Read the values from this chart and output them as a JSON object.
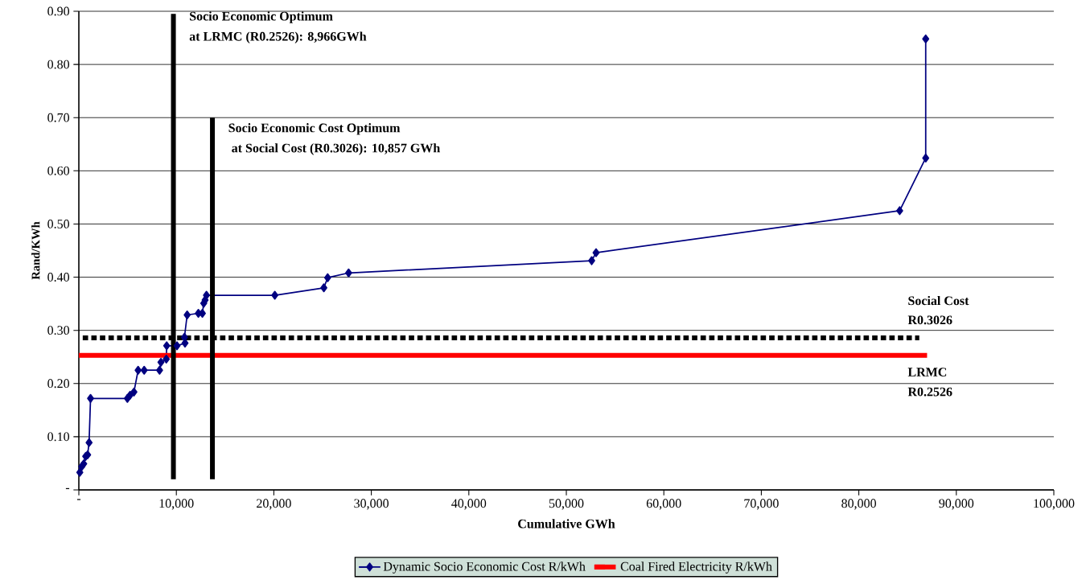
{
  "chart_data": {
    "type": "line",
    "xlabel": "Cumulative GWh",
    "ylabel": "Rand/KWh",
    "xlim": [
      0,
      100000
    ],
    "ylim": [
      0,
      0.9
    ],
    "xticks": [
      {
        "value": 0,
        "label": "-"
      },
      {
        "value": 10000,
        "label": "10,000"
      },
      {
        "value": 20000,
        "label": "20,000"
      },
      {
        "value": 30000,
        "label": "30,000"
      },
      {
        "value": 40000,
        "label": "40,000"
      },
      {
        "value": 50000,
        "label": "50,000"
      },
      {
        "value": 60000,
        "label": "60,000"
      },
      {
        "value": 70000,
        "label": "70,000"
      },
      {
        "value": 80000,
        "label": "80,000"
      },
      {
        "value": 90000,
        "label": "90,000"
      },
      {
        "value": 100000,
        "label": "100,000"
      }
    ],
    "yticks": [
      {
        "value": 0,
        "label": "-"
      },
      {
        "value": 0.1,
        "label": "0.10"
      },
      {
        "value": 0.2,
        "label": "0.20"
      },
      {
        "value": 0.3,
        "label": "0.30"
      },
      {
        "value": 0.4,
        "label": "0.40"
      },
      {
        "value": 0.5,
        "label": "0.50"
      },
      {
        "value": 0.6,
        "label": "0.60"
      },
      {
        "value": 0.7,
        "label": "0.70"
      },
      {
        "value": 0.8,
        "label": "0.80"
      },
      {
        "value": 0.9,
        "label": "0.90"
      }
    ],
    "grid": "y",
    "legend": "bottom",
    "series": [
      {
        "name": "Dynamic Socio Economic Cost R/kWh",
        "color": "#000080",
        "marker": "diamond",
        "x": [
          100,
          300,
          500,
          700,
          900,
          1050,
          1200,
          4980,
          5250,
          5650,
          6080,
          6700,
          8280,
          8420,
          8970,
          9010,
          10070,
          10890,
          10830,
          11110,
          12260,
          12670,
          12810,
          12950,
          13090,
          20100,
          25130,
          25520,
          27670,
          52600,
          53050,
          84190,
          86860,
          86860
        ],
        "values": [
          0.033,
          0.044,
          0.049,
          0.063,
          0.066,
          0.089,
          0.172,
          0.172,
          0.178,
          0.184,
          0.225,
          0.225,
          0.225,
          0.24,
          0.246,
          0.271,
          0.271,
          0.276,
          0.287,
          0.329,
          0.332,
          0.332,
          0.351,
          0.357,
          0.366,
          0.366,
          0.38,
          0.399,
          0.408,
          0.431,
          0.446,
          0.525,
          0.624,
          0.848
        ]
      },
      {
        "name": "Coal Fired Electricity R/kWh",
        "color": "#ff0000",
        "x": [
          0,
          87000
        ],
        "values": [
          0.253,
          0.253
        ]
      },
      {
        "color": "#000000",
        "line_style": "dashed",
        "x": [
          400,
          86200
        ],
        "values": [
          0.286,
          0.286
        ]
      },
      {
        "color": "#000000",
        "x": [
          9700,
          9700
        ],
        "values": [
          0.02,
          0.895
        ]
      },
      {
        "color": "#000000",
        "x": [
          13700,
          13700
        ],
        "values": [
          0.02,
          0.7
        ]
      }
    ],
    "annotations": [
      "Socio Economic Optimum",
      "at LRMC (R0.2526): 8,966GWh",
      "Socio Economic Cost Optimum",
      " at Social Cost (R0.3026): 10,857 GWh",
      "Social Cost",
      "R0.3026",
      "LRMC",
      "R0.2526"
    ]
  }
}
